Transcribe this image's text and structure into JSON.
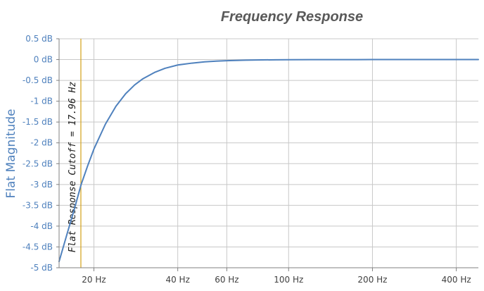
{
  "chart_data": {
    "type": "line",
    "title": "Frequency Response",
    "xlabel": "",
    "ylabel": "Flat Magnitude",
    "x_scale": "log",
    "xlim": [
      15,
      480
    ],
    "ylim": [
      -5,
      0.5
    ],
    "x_ticks": [
      {
        "value": 20,
        "label": "20 Hz"
      },
      {
        "value": 40,
        "label": "40 Hz"
      },
      {
        "value": 60,
        "label": "60 Hz"
      },
      {
        "value": 100,
        "label": "100 Hz"
      },
      {
        "value": 200,
        "label": "200 Hz"
      },
      {
        "value": 400,
        "label": "400 Hz"
      }
    ],
    "y_ticks": [
      {
        "value": 0.5,
        "label": "0.5 dB"
      },
      {
        "value": 0,
        "label": "0 dB"
      },
      {
        "value": -0.5,
        "label": "-0.5 dB"
      },
      {
        "value": -1,
        "label": "-1 dB"
      },
      {
        "value": -1.5,
        "label": "-1.5 dB"
      },
      {
        "value": -2,
        "label": "-2 dB"
      },
      {
        "value": -2.5,
        "label": "-2.5 dB"
      },
      {
        "value": -3,
        "label": "-3 dB"
      },
      {
        "value": -3.5,
        "label": "-3.5 dB"
      },
      {
        "value": -4,
        "label": "-4 dB"
      },
      {
        "value": -4.5,
        "label": "-4.5 dB"
      },
      {
        "value": -5,
        "label": "-5 dB"
      }
    ],
    "grid": true,
    "series": [
      {
        "color": "#4f81bd",
        "x": [
          15,
          16,
          17,
          18,
          19,
          20,
          22,
          24,
          26,
          28,
          30,
          33,
          36,
          40,
          45,
          50,
          55,
          60,
          70,
          80,
          90,
          100,
          120,
          150,
          200,
          300,
          400,
          480
        ],
        "y": [
          -4.85,
          -4.2,
          -3.6,
          -3.0,
          -2.55,
          -2.15,
          -1.55,
          -1.12,
          -0.82,
          -0.61,
          -0.46,
          -0.31,
          -0.21,
          -0.13,
          -0.085,
          -0.055,
          -0.038,
          -0.027,
          -0.014,
          -0.008,
          -0.005,
          -0.003,
          -0.0015,
          -0.0007,
          -0.0002,
          0,
          0,
          0
        ]
      }
    ],
    "annotations": [
      {
        "type": "vline",
        "x": 17.96,
        "color": "#d4a017",
        "label": "Flat Response Cutoff = 17.96 Hz"
      }
    ]
  }
}
